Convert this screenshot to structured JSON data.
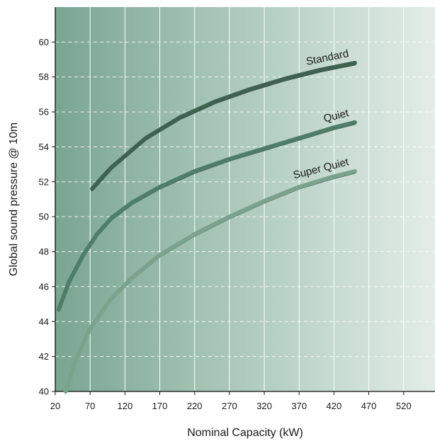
{
  "chart_data": {
    "type": "line",
    "title": "",
    "xlabel": "Nominal Capacity (kW)",
    "ylabel": "Global sound pressure @ 10m",
    "xlim": [
      20,
      565
    ],
    "ylim": [
      40,
      62
    ],
    "x_ticks": [
      "20",
      "70",
      "120",
      "170",
      "220",
      "270",
      "320",
      "370",
      "420",
      "470",
      "520"
    ],
    "y_ticks": [
      "40",
      "42",
      "44",
      "46",
      "48",
      "50",
      "52",
      "54",
      "56",
      "58",
      "60"
    ],
    "grid": true,
    "background": "gradient from dark sea green (left) to near white (right)",
    "series": [
      {
        "name": "Standard",
        "color": "#3f6150",
        "x": [
          73,
          100,
          150,
          200,
          250,
          300,
          350,
          400,
          450
        ],
        "y": [
          51.6,
          52.8,
          54.5,
          55.7,
          56.6,
          57.3,
          57.9,
          58.4,
          58.8
        ]
      },
      {
        "name": "Quiet",
        "color": "#4e7e68",
        "x": [
          25,
          40,
          60,
          80,
          100,
          130,
          170,
          220,
          270,
          320,
          370,
          420,
          450
        ],
        "y": [
          44.7,
          46.3,
          47.8,
          49.0,
          49.9,
          50.8,
          51.7,
          52.6,
          53.3,
          53.9,
          54.5,
          55.1,
          55.4
        ]
      },
      {
        "name": "Super Quiet",
        "color": "#7aa28d",
        "x": [
          35,
          50,
          70,
          100,
          130,
          170,
          220,
          270,
          320,
          370,
          420,
          450
        ],
        "y": [
          40.0,
          41.9,
          43.6,
          45.3,
          46.5,
          47.8,
          49.0,
          50.0,
          50.9,
          51.7,
          52.3,
          52.6
        ]
      }
    ]
  }
}
